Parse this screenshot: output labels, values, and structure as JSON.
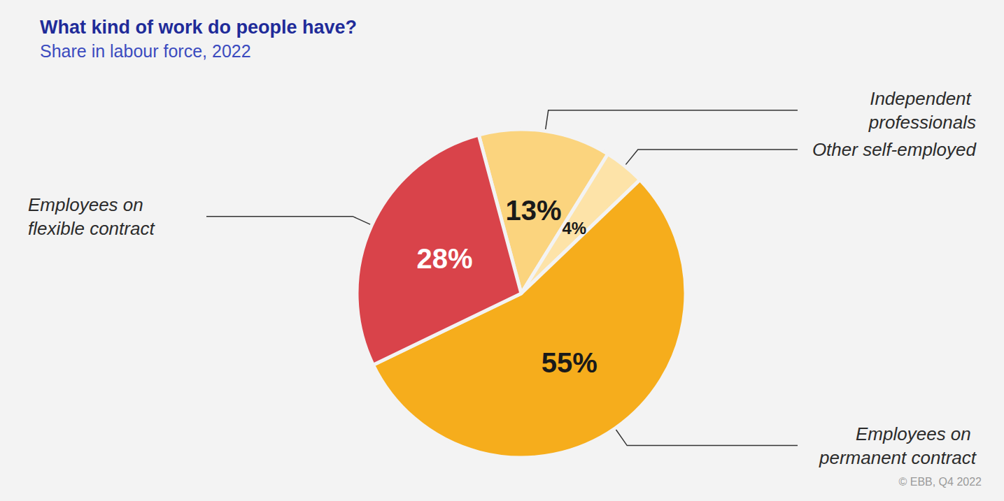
{
  "chart_data": {
    "type": "pie",
    "title": "What kind of work do people have?",
    "subtitle": "Share in labour force, 2022",
    "categories": [
      "Independent professionals",
      "Other self-employed",
      "Employees on permanent contract",
      "Employees on flexible contract"
    ],
    "values": [
      13,
      4,
      55,
      28
    ],
    "value_labels": [
      "13%",
      "4%",
      "55%",
      "28%"
    ],
    "colors": [
      "#fbd47e",
      "#fde3a8",
      "#f6ad1c",
      "#d9434a"
    ],
    "data_labels": true,
    "annotations": [
      "© EBB, Q4 2022"
    ]
  }
}
